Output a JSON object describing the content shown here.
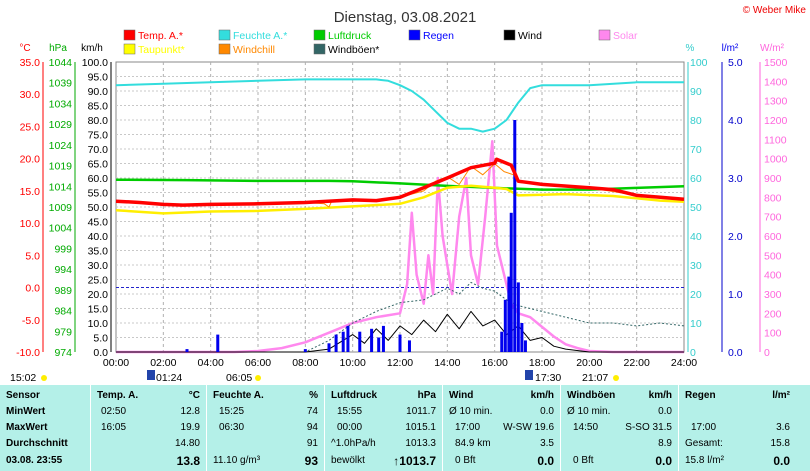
{
  "title": "Dienstag, 03.08.2021",
  "copyright": "© Weber Mike",
  "legend": [
    {
      "label": "Temp. A.*",
      "color": "#ff0000"
    },
    {
      "label": "Feuchte A.*",
      "color": "#33dddd"
    },
    {
      "label": "Luftdruck",
      "color": "#00cc00"
    },
    {
      "label": "Regen",
      "color": "#0000ff"
    },
    {
      "label": "Wind",
      "color": "#000000"
    },
    {
      "label": "Solar",
      "color": "#ff88ee"
    },
    {
      "label": "Taupunkt*",
      "color": "#ffff00"
    },
    {
      "label": "Windchill",
      "color": "#ff8800"
    },
    {
      "label": "Windböen*",
      "color": "#336666"
    }
  ],
  "axis_units": {
    "temp": "°C",
    "press": "hPa",
    "wind": "km/h",
    "hum": "%",
    "rain": "l/m²",
    "solar": "W/m²"
  },
  "axes": {
    "temp_ticks": [
      "35.0",
      "30.0",
      "25.0",
      "20.0",
      "15.0",
      "10.0",
      "5.0",
      "0.0",
      "-5.0",
      "-10.0"
    ],
    "press_ticks": [
      "1044",
      "1039",
      "1034",
      "1029",
      "1024",
      "1019",
      "1014",
      "1009",
      "1004",
      "999",
      "994",
      "989",
      "984",
      "979",
      "974"
    ],
    "wind_ticks": [
      "100.0",
      "95.0",
      "90.0",
      "85.0",
      "80.0",
      "75.0",
      "70.0",
      "65.0",
      "60.0",
      "55.0",
      "50.0",
      "45.0",
      "40.0",
      "35.0",
      "30.0",
      "25.0",
      "20.0",
      "15.0",
      "10.0",
      "5.0",
      "0.0"
    ],
    "hum_ticks": [
      "100",
      "90",
      "80",
      "70",
      "60",
      "50",
      "40",
      "30",
      "20",
      "10",
      "0"
    ],
    "rain_ticks": [
      "5.0",
      "4.0",
      "3.0",
      "2.0",
      "1.0",
      "0.0"
    ],
    "solar_ticks": [
      "1500",
      "1400",
      "1300",
      "1200",
      "1100",
      "1000",
      "900",
      "800",
      "700",
      "600",
      "500",
      "400",
      "300",
      "200",
      "100",
      "0"
    ],
    "time_ticks": [
      "00:00",
      "02:00",
      "04:00",
      "06:00",
      "08:00",
      "10:00",
      "12:00",
      "14:00",
      "16:00",
      "18:00",
      "20:00",
      "22:00",
      "24:00"
    ]
  },
  "markers": {
    "min_time": "15:02",
    "sunrise": "06:05",
    "sunset": "21:07",
    "moonrise": "01:24",
    "moonset": "17:30"
  },
  "chart_data": {
    "type": "line",
    "x_unit": "hours",
    "xlim": [
      0,
      24
    ],
    "series": [
      {
        "name": "Temp. A.*",
        "axis": "temp",
        "values": [
          [
            0,
            13.4
          ],
          [
            1,
            13.2
          ],
          [
            2,
            12.9
          ],
          [
            2.83,
            12.8
          ],
          [
            4,
            12.9
          ],
          [
            6,
            13.0
          ],
          [
            8,
            13.2
          ],
          [
            10,
            13.6
          ],
          [
            11,
            13.5
          ],
          [
            12,
            14.0
          ],
          [
            13,
            15.5
          ],
          [
            14,
            17.0
          ],
          [
            15,
            18.6
          ],
          [
            16,
            19.3
          ],
          [
            16.08,
            19.9
          ],
          [
            16.7,
            19.0
          ],
          [
            17,
            16.5
          ],
          [
            18,
            16.0
          ],
          [
            20,
            15.5
          ],
          [
            21,
            15.2
          ],
          [
            22,
            14.3
          ],
          [
            23,
            14.0
          ],
          [
            24,
            13.7
          ]
        ]
      },
      {
        "name": "Taupunkt*",
        "axis": "temp",
        "values": [
          [
            0,
            12.0
          ],
          [
            2,
            11.5
          ],
          [
            4,
            11.8
          ],
          [
            6,
            11.9
          ],
          [
            8,
            12.2
          ],
          [
            10,
            12.6
          ],
          [
            12,
            13.0
          ],
          [
            13,
            14.0
          ],
          [
            14,
            15.5
          ],
          [
            15,
            15.8
          ],
          [
            16,
            15.5
          ],
          [
            16.5,
            15.3
          ],
          [
            17,
            14.3
          ],
          [
            19,
            14.5
          ],
          [
            21,
            14.2
          ],
          [
            23,
            13.5
          ],
          [
            24,
            13.3
          ]
        ]
      },
      {
        "name": "Windchill",
        "axis": "temp",
        "values": [
          [
            0,
            13.4
          ],
          [
            2,
            12.9
          ],
          [
            4,
            12.9
          ],
          [
            6,
            13.0
          ],
          [
            8,
            13.2
          ],
          [
            8.8,
            13.0
          ],
          [
            9,
            12.5
          ],
          [
            9.1,
            13.3
          ],
          [
            10,
            13.4
          ],
          [
            11,
            13.5
          ],
          [
            12,
            14.0
          ],
          [
            13,
            15.0
          ],
          [
            13.5,
            16.5
          ],
          [
            14,
            17.2
          ],
          [
            14.5,
            16.0
          ],
          [
            15,
            18.8
          ],
          [
            15.5,
            17.5
          ],
          [
            16,
            19.2
          ],
          [
            16.4,
            18.0
          ],
          [
            16.8,
            17.5
          ],
          [
            17,
            16.3
          ],
          [
            18,
            16.0
          ],
          [
            20,
            15.5
          ],
          [
            22,
            14.3
          ],
          [
            24,
            13.7
          ]
        ]
      },
      {
        "name": "Luftdruck",
        "axis": "press",
        "values": [
          [
            0,
            1015.6
          ],
          [
            3,
            1015.5
          ],
          [
            6,
            1015.3
          ],
          [
            9,
            1015.3
          ],
          [
            10,
            1015.2
          ],
          [
            12,
            1014.7
          ],
          [
            14,
            1014.1
          ],
          [
            16,
            1013.6
          ],
          [
            17,
            1013.4
          ],
          [
            18,
            1013.2
          ],
          [
            20,
            1013.2
          ],
          [
            22,
            1013.6
          ],
          [
            24,
            1014.0
          ]
        ]
      },
      {
        "name": "Feuchte A.*",
        "axis": "hum",
        "values": [
          [
            0,
            92
          ],
          [
            2,
            92.5
          ],
          [
            4,
            93
          ],
          [
            6,
            93.5
          ],
          [
            8,
            94
          ],
          [
            10,
            94
          ],
          [
            11,
            94
          ],
          [
            11.5,
            93.5
          ],
          [
            12,
            92
          ],
          [
            12.5,
            90
          ],
          [
            13,
            87
          ],
          [
            13.5,
            83
          ],
          [
            14,
            79
          ],
          [
            14.5,
            77
          ],
          [
            15,
            77
          ],
          [
            15.5,
            76
          ],
          [
            16,
            77
          ],
          [
            16.5,
            80
          ],
          [
            17,
            86
          ],
          [
            17.5,
            91
          ],
          [
            18,
            92
          ],
          [
            20,
            92
          ],
          [
            22,
            93
          ],
          [
            24,
            93
          ]
        ]
      },
      {
        "name": "Wind",
        "axis": "wind",
        "values": [
          [
            0,
            0
          ],
          [
            8,
            0
          ],
          [
            9,
            1
          ],
          [
            10,
            6
          ],
          [
            10.5,
            3
          ],
          [
            11,
            8
          ],
          [
            11.5,
            4
          ],
          [
            12,
            9
          ],
          [
            12.5,
            6
          ],
          [
            13,
            11
          ],
          [
            13.5,
            7
          ],
          [
            14,
            13
          ],
          [
            14.5,
            8
          ],
          [
            15,
            14
          ],
          [
            15.5,
            9
          ],
          [
            16,
            11
          ],
          [
            16.5,
            6
          ],
          [
            17,
            9
          ],
          [
            17.5,
            4
          ],
          [
            18,
            5
          ],
          [
            18.5,
            2
          ],
          [
            19,
            1
          ],
          [
            20,
            0
          ],
          [
            24,
            0
          ]
        ]
      },
      {
        "name": "Windböen*",
        "axis": "wind",
        "values": [
          [
            0,
            0
          ],
          [
            8,
            0
          ],
          [
            9,
            4
          ],
          [
            10,
            10
          ],
          [
            11,
            14
          ],
          [
            12,
            17
          ],
          [
            13,
            18
          ],
          [
            14,
            22
          ],
          [
            14.5,
            20
          ],
          [
            15,
            24
          ],
          [
            15.5,
            22
          ],
          [
            16,
            21
          ],
          [
            16.5,
            18
          ],
          [
            17,
            16
          ],
          [
            18,
            14
          ],
          [
            19,
            12
          ],
          [
            20,
            10
          ],
          [
            21,
            10
          ],
          [
            22,
            9
          ],
          [
            23,
            10
          ],
          [
            24,
            9
          ]
        ]
      },
      {
        "name": "Solar",
        "axis": "solar",
        "values": [
          [
            0,
            0
          ],
          [
            5,
            0
          ],
          [
            6,
            5
          ],
          [
            7,
            20
          ],
          [
            8,
            50
          ],
          [
            9,
            100
          ],
          [
            10,
            150
          ],
          [
            11,
            180
          ],
          [
            12,
            200
          ],
          [
            12.3,
            350
          ],
          [
            12.5,
            720
          ],
          [
            12.7,
            400
          ],
          [
            13,
            250
          ],
          [
            13.2,
            500
          ],
          [
            13.4,
            300
          ],
          [
            13.6,
            900
          ],
          [
            13.8,
            600
          ],
          [
            14,
            450
          ],
          [
            14.2,
            300
          ],
          [
            14.5,
            700
          ],
          [
            14.8,
            900
          ],
          [
            15,
            500
          ],
          [
            15.3,
            350
          ],
          [
            15.6,
            700
          ],
          [
            15.9,
            1090
          ],
          [
            16.1,
            550
          ],
          [
            16.4,
            400
          ],
          [
            16.7,
            250
          ],
          [
            17,
            200
          ],
          [
            17.5,
            180
          ],
          [
            18,
            130
          ],
          [
            18.5,
            80
          ],
          [
            19,
            40
          ],
          [
            19.5,
            20
          ],
          [
            20,
            5
          ],
          [
            21,
            0
          ],
          [
            24,
            0
          ]
        ]
      }
    ],
    "rain": {
      "name": "Regen",
      "axis": "rain",
      "bars": [
        [
          3.0,
          0.05
        ],
        [
          4.3,
          0.3
        ],
        [
          8.0,
          0.05
        ],
        [
          9.0,
          0.15
        ],
        [
          9.3,
          0.3
        ],
        [
          9.6,
          0.35
        ],
        [
          9.8,
          0.45
        ],
        [
          10.3,
          0.35
        ],
        [
          10.8,
          0.4
        ],
        [
          11.1,
          0.25
        ],
        [
          11.3,
          0.45
        ],
        [
          12.0,
          0.3
        ],
        [
          12.4,
          0.2
        ],
        [
          16.3,
          0.35
        ],
        [
          16.45,
          0.9
        ],
        [
          16.6,
          1.3
        ],
        [
          16.7,
          2.4
        ],
        [
          16.85,
          4.0
        ],
        [
          17.0,
          1.2
        ],
        [
          17.15,
          0.5
        ],
        [
          17.3,
          0.2
        ]
      ]
    }
  },
  "stats": {
    "headers": {
      "sensor": "Sensor",
      "temp": "Temp. A.",
      "temp_u": "°C",
      "hum": "Feuchte A.",
      "hum_u": "%",
      "press": "Luftdruck",
      "press_u": "hPa",
      "wind": "Wind",
      "wind_u": "km/h",
      "gust": "Windböen",
      "gust_u": "km/h",
      "rain": "Regen",
      "rain_u": "l/m²"
    },
    "labels": {
      "min": "MinWert",
      "max": "MaxWert",
      "avg": "Durchschnitt",
      "date": "03.08. 23:55"
    },
    "min": {
      "temp_t": "02:50",
      "temp_v": "12.8",
      "hum_t": "15:25",
      "hum_v": "74",
      "press_t": "15:55",
      "press_v": "1011.7",
      "wind_t": "Ø 10 min.",
      "wind_v": "0.0",
      "gust_t": "Ø 10 min.",
      "gust_v": "0.0"
    },
    "max": {
      "temp_t": "16:05",
      "temp_v": "19.9",
      "hum_t": "06:30",
      "hum_v": "94",
      "press_t": "00:00",
      "press_v": "1015.1",
      "wind_t": "17:00",
      "wind_d": "W-SW 19.6",
      "gust_t": "14:50",
      "gust_d": "S-SO 31.5",
      "rain_t": "17:00",
      "rain_v": "3.6"
    },
    "avg": {
      "temp_v": "14.80",
      "hum_v": "91",
      "press_t": "^1.0hPa/h",
      "press_v": "1013.3",
      "wind_t": "84.9 km",
      "wind_v": "3.5",
      "gust_v": "8.9",
      "rain_t": "Gesamt:",
      "rain_v": "15.8"
    },
    "cur": {
      "temp_v": "13.8",
      "hum_t": "11.10 g/m³",
      "hum_v": "93",
      "press_t": "bewölkt",
      "press_v": "↑1013.7",
      "wind_t": "0 Bft",
      "wind_v": "0.0",
      "gust_t": "0 Bft",
      "gust_v": "0.0",
      "rain_t": "15.8 l/m²",
      "rain_v": "0.0"
    }
  }
}
